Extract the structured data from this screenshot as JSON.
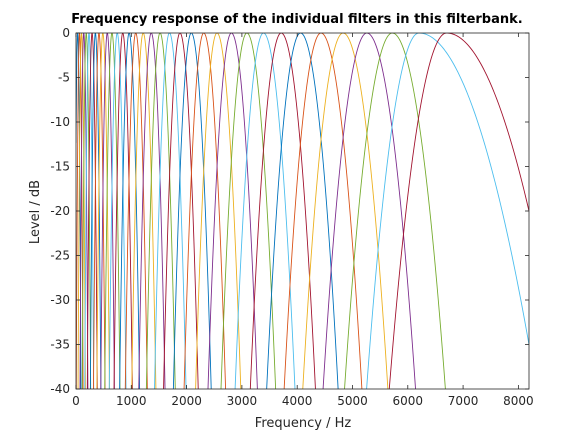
{
  "chart_data": {
    "type": "line",
    "title": "Frequency response of the individual filters in this filterbank.",
    "xlabel": "Frequency / Hz",
    "ylabel": "Level / dB",
    "xlim": [
      0,
      8192
    ],
    "ylim": [
      -40,
      0
    ],
    "xticks": [
      0,
      1000,
      2000,
      3000,
      4000,
      5000,
      6000,
      7000,
      8000
    ],
    "yticks": [
      0,
      -5,
      -10,
      -15,
      -20,
      -25,
      -30,
      -35,
      -40
    ],
    "grid": false,
    "legend": "none",
    "series_description_note": "",
    "series_color_cycle": [
      "#0072BD",
      "#D95319",
      "#EDB120",
      "#7E2F8E",
      "#77AC30",
      "#4DBEEE",
      "#A2142F"
    ],
    "filters": {
      "center_frequencies": [
        30,
        63,
        100,
        140,
        185,
        235,
        290,
        350,
        415,
        485,
        565,
        650,
        745,
        845,
        960,
        1080,
        1215,
        1360,
        1520,
        1690,
        1880,
        2085,
        2310,
        2550,
        2810,
        3090,
        3390,
        3710,
        4060,
        4430,
        4830,
        5260,
        5720,
        6200,
        6700
      ],
      "bandwidth_at_minus_40_dB": [
        60,
        65,
        70,
        75,
        80,
        85,
        95,
        100,
        110,
        120,
        130,
        145,
        160,
        175,
        190,
        210,
        230,
        250,
        275,
        300,
        330,
        360,
        395,
        430,
        470,
        520,
        570,
        620,
        680,
        740,
        810,
        880,
        960,
        1050,
        1150
      ]
    },
    "series_levels_at_right_edge": [
      {
        "x": 8192,
        "y": -20
      },
      {
        "x": 8192,
        "y": -35
      }
    ]
  }
}
